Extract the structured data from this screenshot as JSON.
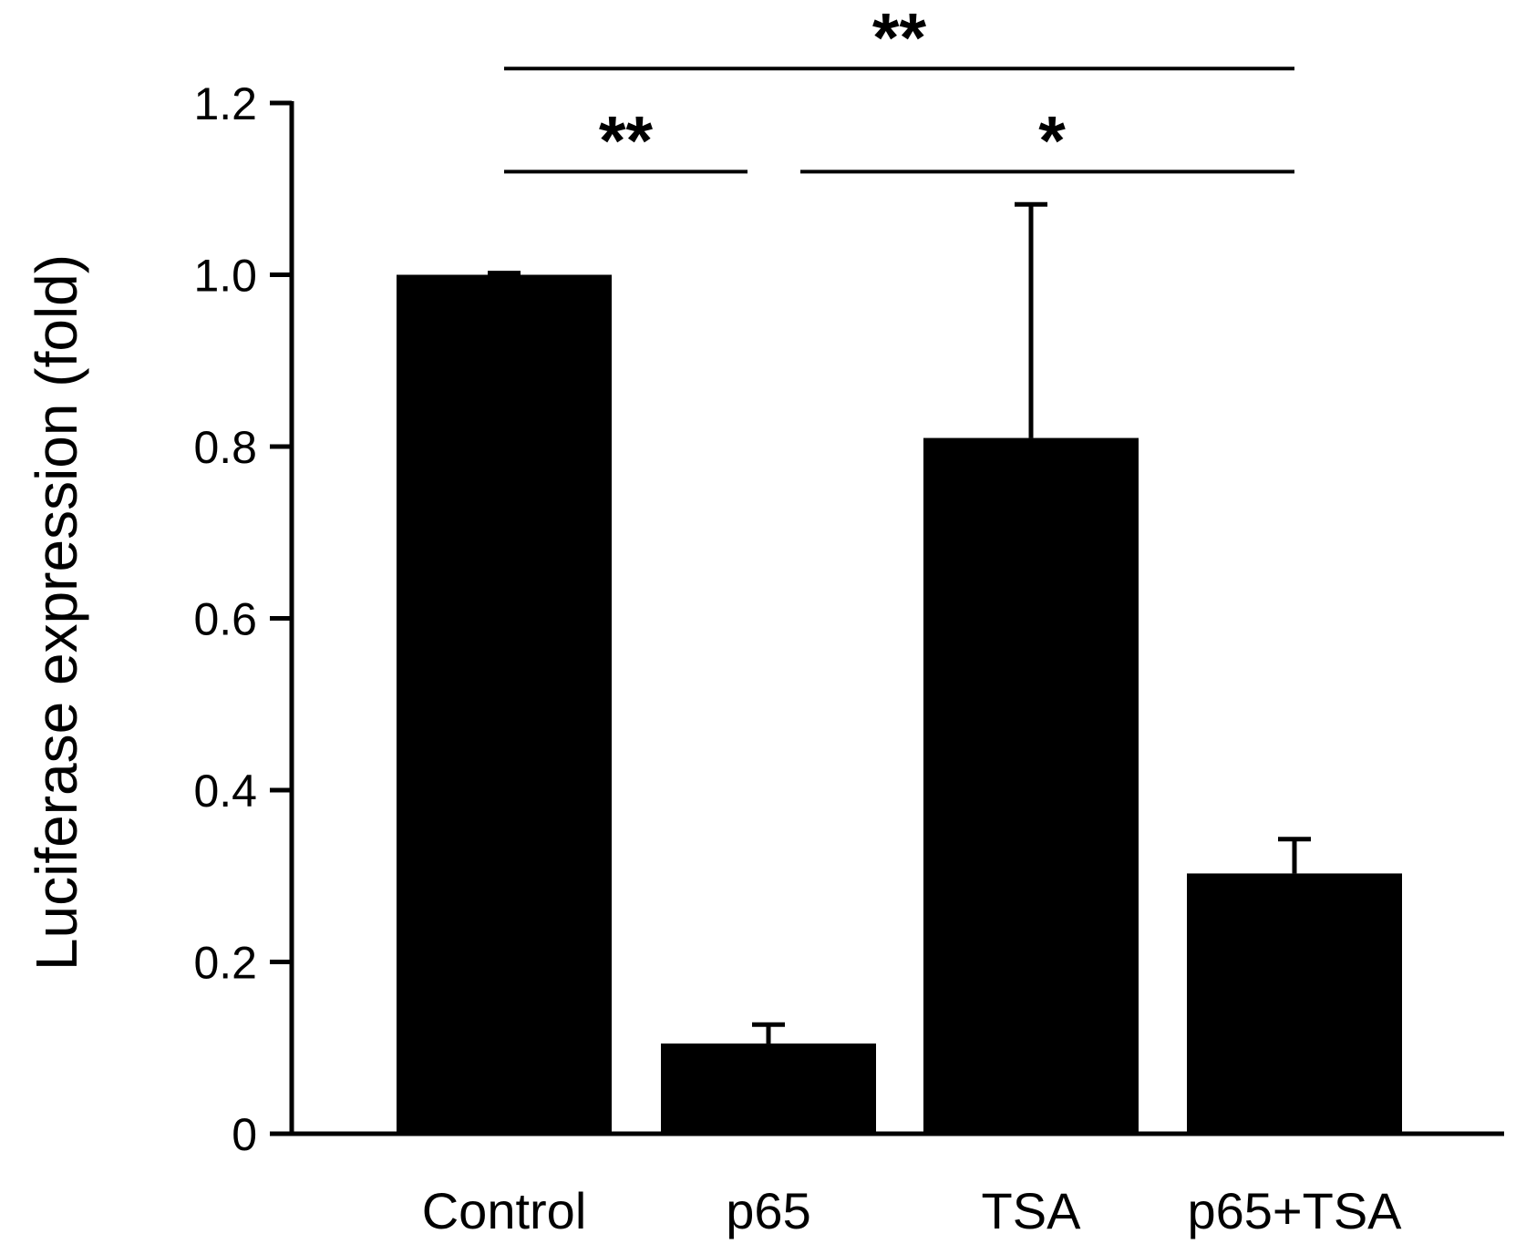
{
  "chart_data": {
    "type": "bar",
    "title": "",
    "xlabel": "",
    "ylabel": "Luciferase expression (fold)",
    "ylim": [
      0,
      1.2
    ],
    "yticks": [
      {
        "value": 0,
        "label": "0"
      },
      {
        "value": 0.2,
        "label": "0.2"
      },
      {
        "value": 0.4,
        "label": "0.4"
      },
      {
        "value": 0.6,
        "label": "0.6"
      },
      {
        "value": 0.8,
        "label": "0.8"
      },
      {
        "value": 1.0,
        "label": "1.0"
      },
      {
        "value": 1.2,
        "label": "1.2"
      }
    ],
    "categories": [
      "Control",
      "p65",
      "TSA",
      "p65+TSA"
    ],
    "values": [
      1.0,
      0.105,
      0.81,
      0.303
    ],
    "error_upper": [
      0.002,
      0.022,
      0.272,
      0.04
    ],
    "bar_color": "#000000",
    "grid": false,
    "significance": [
      {
        "from": 0,
        "to": 3,
        "label": "**",
        "level": 1.24
      },
      {
        "from": 0,
        "to": 1,
        "label": "**",
        "level": 1.12
      },
      {
        "from": 1,
        "to": 3,
        "label": "*",
        "level": 1.12
      }
    ]
  }
}
